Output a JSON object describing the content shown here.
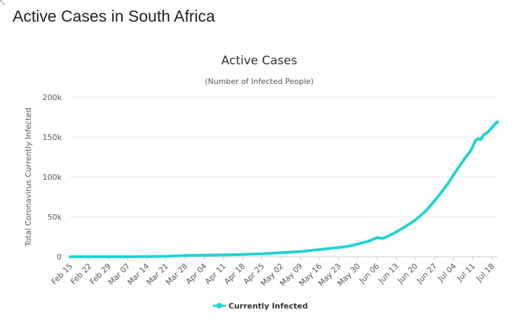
{
  "page": {
    "title": "Active Cases in South Africa"
  },
  "colors": {
    "series": "#1fd4d4",
    "grid": "#e6e6e6",
    "axis": "#cccccc"
  },
  "chart_data": {
    "type": "line",
    "title": "Active Cases",
    "subtitle": "(Number of Infected People)",
    "xlabel": "",
    "ylabel": "Total Coronavirus Currently Infected",
    "ylim": [
      0,
      200000
    ],
    "y_ticks": [
      0,
      50000,
      100000,
      150000,
      200000
    ],
    "y_tick_labels": [
      "0",
      "50k",
      "100k",
      "150k",
      "200k"
    ],
    "x_range_days": [
      0,
      156
    ],
    "x_ticks": [
      {
        "label": "Feb 15",
        "day": 0
      },
      {
        "label": "Feb 22",
        "day": 7
      },
      {
        "label": "Feb 29",
        "day": 14
      },
      {
        "label": "Mar 07",
        "day": 21
      },
      {
        "label": "Mar 14",
        "day": 28
      },
      {
        "label": "Mar 21",
        "day": 35
      },
      {
        "label": "Mar 28",
        "day": 42
      },
      {
        "label": "Apr 04",
        "day": 49
      },
      {
        "label": "Apr 11",
        "day": 56
      },
      {
        "label": "Apr 18",
        "day": 63
      },
      {
        "label": "Apr 25",
        "day": 70
      },
      {
        "label": "May 02",
        "day": 77
      },
      {
        "label": "May 09",
        "day": 84
      },
      {
        "label": "May 16",
        "day": 91
      },
      {
        "label": "May 23",
        "day": 98
      },
      {
        "label": "May 30",
        "day": 105
      },
      {
        "label": "Jun 06",
        "day": 112
      },
      {
        "label": "Jun 13",
        "day": 119
      },
      {
        "label": "Jun 20",
        "day": 126
      },
      {
        "label": "Jun 27",
        "day": 133
      },
      {
        "label": "Jul 04",
        "day": 140
      },
      {
        "label": "Jul 11",
        "day": 147
      },
      {
        "label": "Jul 18",
        "day": 154
      }
    ],
    "legend": {
      "position": "bottom-center"
    },
    "series": [
      {
        "name": "Currently Infected",
        "x_days": [
          0,
          21,
          35,
          42,
          49,
          56,
          63,
          70,
          77,
          84,
          91,
          98,
          102,
          105,
          109,
          112,
          114,
          116,
          119,
          122,
          126,
          130,
          133,
          136,
          138,
          140,
          142,
          144,
          146,
          147,
          148,
          149,
          150,
          151,
          152,
          153,
          154,
          155,
          156
        ],
        "values": [
          0,
          0,
          500,
          1500,
          2000,
          2300,
          2800,
          3800,
          5000,
          6500,
          9000,
          11500,
          13500,
          16000,
          19500,
          24000,
          23000,
          25500,
          31000,
          37000,
          46000,
          58000,
          70000,
          83000,
          92000,
          103000,
          113000,
          123000,
          132000,
          138000,
          146000,
          148000,
          147000,
          153000,
          155000,
          158000,
          162000,
          166000,
          169000
        ]
      }
    ]
  }
}
